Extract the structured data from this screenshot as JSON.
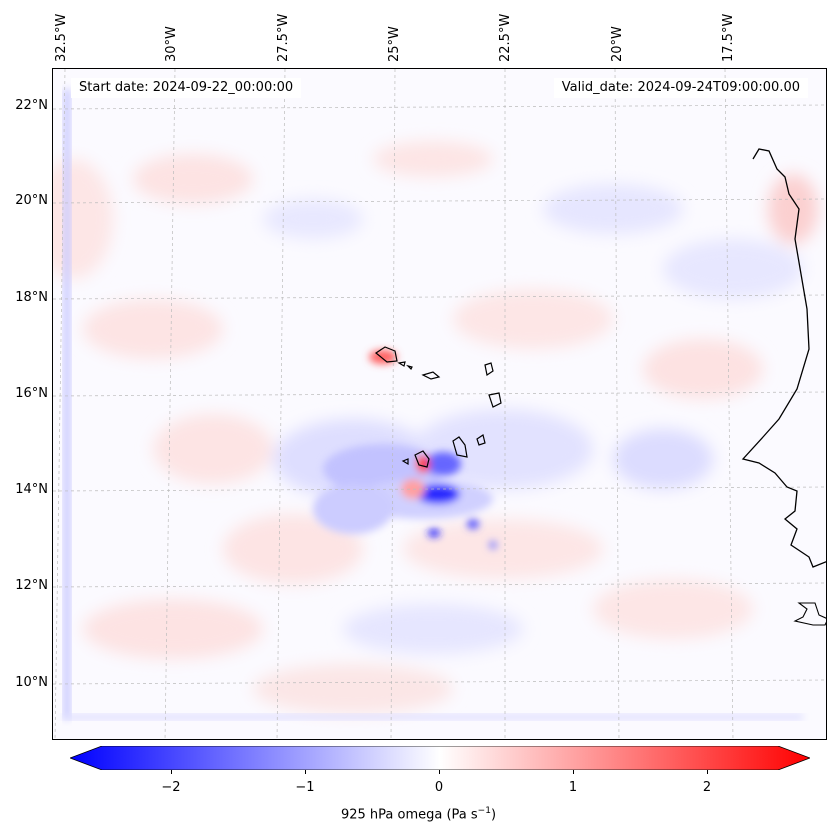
{
  "map": {
    "start_date": "Start date: 2024-09-22_00:00:00",
    "valid_date": "Valid_date: 2024-09-24T09:00:00.00",
    "longitude_labels": [
      "32.5°W",
      "30°W",
      "27.5°W",
      "25°W",
      "22.5°W",
      "20°W",
      "17.5°W"
    ],
    "latitude_labels": [
      "22°N",
      "20°N",
      "18°N",
      "16°N",
      "14°N",
      "12°N",
      "10°N"
    ],
    "field": "925 hPa omega",
    "colors": {
      "negative": "#0000ff",
      "positive": "#ff0000",
      "neutral": "#ffffff",
      "coastline": "#000000",
      "grid": "#bbbbbb"
    }
  },
  "colorbar": {
    "label_prefix": "925 hPa omega (Pa s",
    "label_exponent": "−1",
    "label_suffix": ")",
    "ticks": [
      "−2",
      "−1",
      "0",
      "1",
      "2"
    ],
    "range": [
      -2.7,
      2.7
    ]
  }
}
